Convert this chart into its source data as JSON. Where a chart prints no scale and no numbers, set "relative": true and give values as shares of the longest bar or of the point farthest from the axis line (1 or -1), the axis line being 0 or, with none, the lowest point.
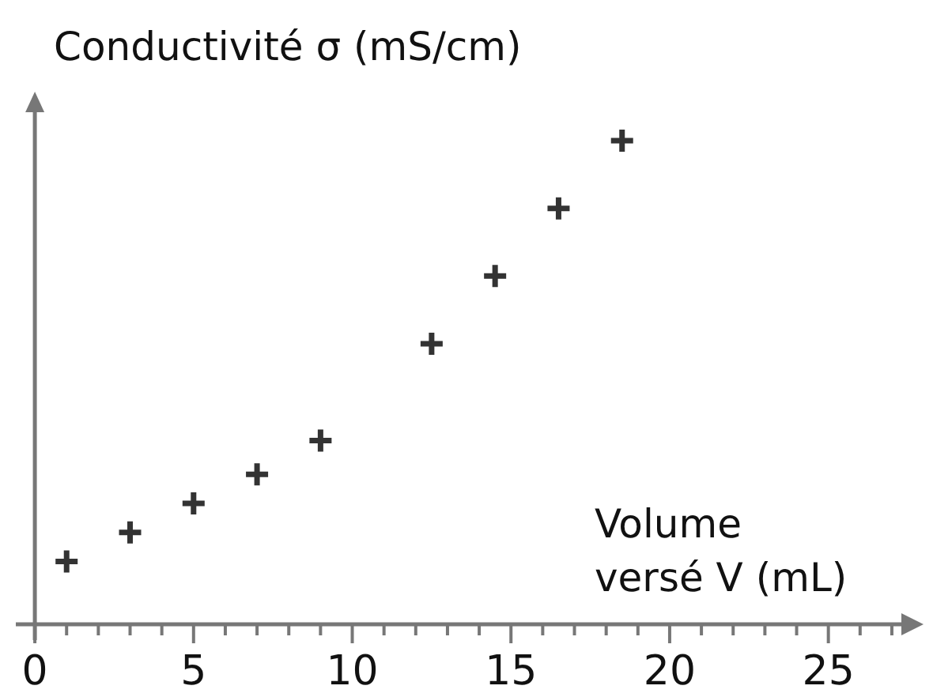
{
  "chart_data": {
    "type": "scatter",
    "relative": true,
    "xlabel": "Volume versé V (mL)",
    "ylabel": "Conductivité σ (mS/cm)",
    "marker": "cross",
    "xlim": [
      -0.6,
      27.3
    ],
    "xticks": [
      0,
      {
        "value": 1,
        "label": null
      },
      {
        "value": 2,
        "label": null
      },
      {
        "value": 3,
        "label": null
      },
      {
        "value": 4,
        "label": null
      },
      5,
      {
        "value": 6,
        "label": null
      },
      {
        "value": 7,
        "label": null
      },
      {
        "value": 8,
        "label": null
      },
      {
        "value": 9,
        "label": null
      },
      10,
      {
        "value": 11,
        "label": null
      },
      {
        "value": 12,
        "label": null
      },
      {
        "value": 13,
        "label": null
      },
      {
        "value": 14,
        "label": null
      },
      15,
      {
        "value": 16,
        "label": null
      },
      {
        "value": 17,
        "label": null
      },
      {
        "value": 18,
        "label": null
      },
      {
        "value": 19,
        "label": null
      },
      20,
      {
        "value": 21,
        "label": null
      },
      {
        "value": 22,
        "label": null
      },
      {
        "value": 23,
        "label": null
      },
      {
        "value": 24,
        "label": null
      },
      25,
      {
        "value": 26,
        "label": null
      },
      {
        "value": 27,
        "label": null
      }
    ],
    "x": [
      1,
      3,
      5,
      7,
      9,
      12.5,
      14.5,
      16.5,
      18.5
    ],
    "values": [
      0.13,
      0.19,
      0.25,
      0.31,
      0.38,
      0.58,
      0.72,
      0.86,
      1
    ],
    "color": "#333333"
  }
}
